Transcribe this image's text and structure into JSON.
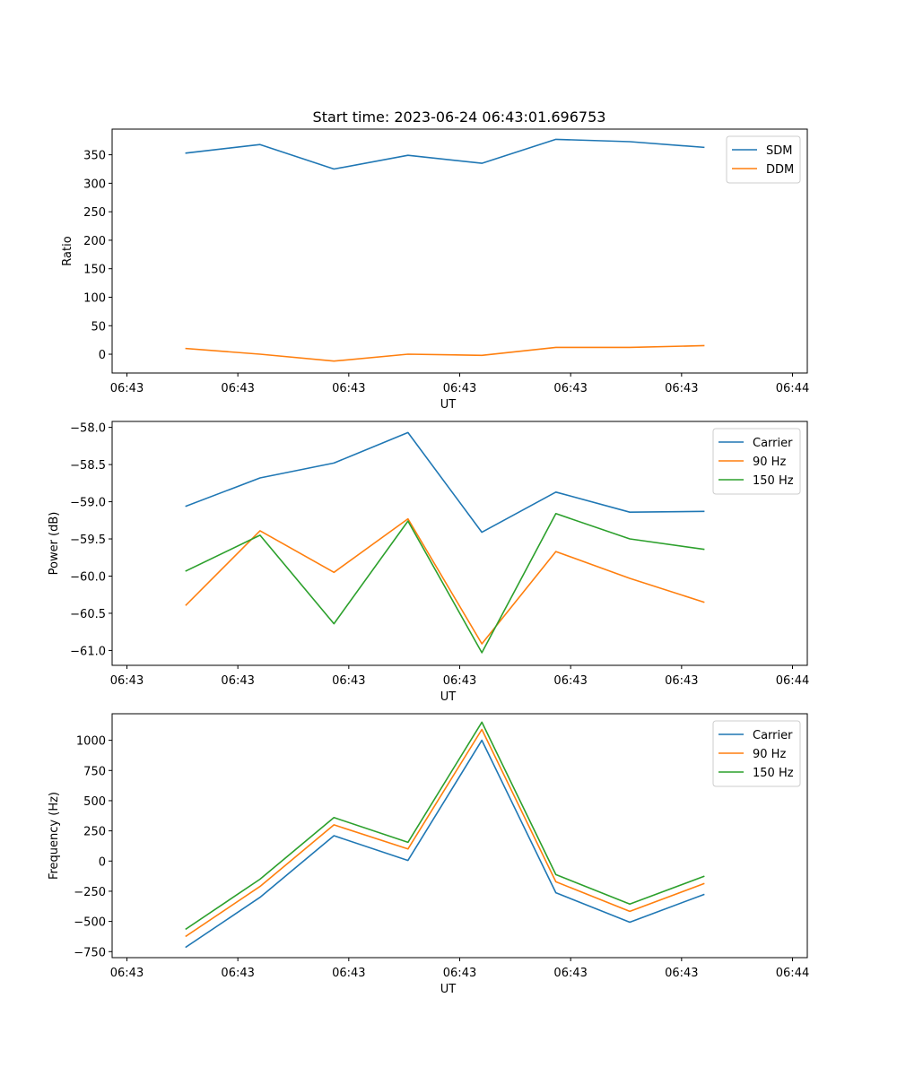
{
  "figure_title": "Start time: 2023-06-24 06:43:01.696753",
  "chart_data": [
    {
      "type": "line",
      "xlabel": "UT",
      "ylabel": "Ratio",
      "x_tick_labels": [
        "06:43",
        "06:43",
        "06:43",
        "06:43",
        "06:43",
        "06:43",
        "06:43"
      ],
      "x_tick_label_end": "06:44",
      "x": [
        1,
        2,
        3,
        4,
        5,
        6,
        7,
        8
      ],
      "xlim": [
        0,
        9.4
      ],
      "ylim": [
        -33,
        395
      ],
      "yticks": [
        0,
        50,
        100,
        150,
        200,
        250,
        300,
        350
      ],
      "ytick_labels": [
        "0",
        "50",
        "100",
        "150",
        "200",
        "250",
        "300",
        "350"
      ],
      "legend_position": "upper right",
      "series": [
        {
          "name": "SDM",
          "color": "#1f77b4",
          "values": [
            353,
            368,
            325,
            349,
            335,
            377,
            373,
            363
          ]
        },
        {
          "name": "DDM",
          "color": "#ff7f0e",
          "values": [
            10,
            0,
            -12,
            0,
            -2,
            12,
            12,
            15
          ]
        }
      ]
    },
    {
      "type": "line",
      "xlabel": "UT",
      "ylabel": "Power (dB)",
      "x_tick_labels": [
        "06:43",
        "06:43",
        "06:43",
        "06:43",
        "06:43",
        "06:43",
        "06:43"
      ],
      "x_tick_label_end": "06:44",
      "x": [
        1,
        2,
        3,
        4,
        5,
        6,
        7,
        8
      ],
      "xlim": [
        0,
        9.4
      ],
      "ylim": [
        -61.2,
        -57.92
      ],
      "yticks": [
        -61.0,
        -60.5,
        -60.0,
        -59.5,
        -59.0,
        -58.5,
        -58.0
      ],
      "ytick_labels": [
        "−61.0",
        "−60.5",
        "−60.0",
        "−59.5",
        "−59.0",
        "−58.5",
        "−58.0"
      ],
      "legend_position": "upper right",
      "series": [
        {
          "name": "Carrier",
          "color": "#1f77b4",
          "values": [
            -59.06,
            -58.68,
            -58.48,
            -58.07,
            -59.41,
            -58.87,
            -59.14,
            -59.13
          ]
        },
        {
          "name": "90 Hz",
          "color": "#ff7f0e",
          "values": [
            -60.39,
            -59.39,
            -59.95,
            -59.23,
            -60.91,
            -59.67,
            -60.03,
            -60.35
          ]
        },
        {
          "name": "150 Hz",
          "color": "#2ca02c",
          "values": [
            -59.93,
            -59.45,
            -60.64,
            -59.26,
            -61.03,
            -59.16,
            -59.5,
            -59.64
          ]
        }
      ]
    },
    {
      "type": "line",
      "xlabel": "UT",
      "ylabel": "Frequency (Hz)",
      "x_tick_labels": [
        "06:43",
        "06:43",
        "06:43",
        "06:43",
        "06:43",
        "06:43",
        "06:43"
      ],
      "x_tick_label_end": "06:44",
      "x": [
        1,
        2,
        3,
        4,
        5,
        6,
        7,
        8
      ],
      "xlim": [
        0,
        9.4
      ],
      "ylim": [
        -800,
        1220
      ],
      "yticks": [
        -750,
        -500,
        -250,
        0,
        250,
        500,
        750,
        1000
      ],
      "ytick_labels": [
        "−750",
        "−500",
        "−250",
        "0",
        "250",
        "500",
        "750",
        "1000"
      ],
      "legend_position": "upper right",
      "series": [
        {
          "name": "Carrier",
          "color": "#1f77b4",
          "values": [
            -712,
            -300,
            210,
            5,
            1000,
            -262,
            -507,
            -277
          ]
        },
        {
          "name": "90 Hz",
          "color": "#ff7f0e",
          "values": [
            -622,
            -210,
            300,
            100,
            1090,
            -172,
            -417,
            -187
          ]
        },
        {
          "name": "150 Hz",
          "color": "#2ca02c",
          "values": [
            -562,
            -150,
            360,
            155,
            1150,
            -112,
            -357,
            -127
          ]
        }
      ]
    }
  ]
}
